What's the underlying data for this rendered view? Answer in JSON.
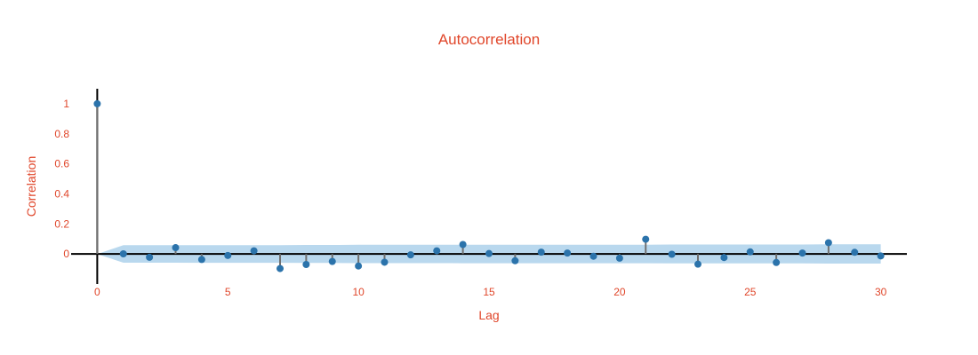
{
  "chart_data": {
    "type": "scatter",
    "title": "Autocorrelation",
    "xlabel": "Lag",
    "ylabel": "Correlation",
    "x": [
      0,
      1,
      2,
      3,
      4,
      5,
      6,
      7,
      8,
      9,
      10,
      11,
      12,
      13,
      14,
      15,
      16,
      17,
      18,
      19,
      20,
      21,
      22,
      23,
      24,
      25,
      26,
      27,
      28,
      29,
      30
    ],
    "values": [
      1.0,
      0.001,
      -0.022,
      0.042,
      -0.037,
      -0.01,
      0.021,
      -0.097,
      -0.07,
      -0.05,
      -0.08,
      -0.055,
      -0.006,
      0.021,
      0.063,
      0.003,
      -0.045,
      0.012,
      0.006,
      -0.015,
      -0.028,
      0.098,
      -0.002,
      -0.068,
      -0.024,
      0.014,
      -0.057,
      0.006,
      0.075,
      0.011,
      -0.013
    ],
    "conf_upper": [
      0.0,
      0.058,
      0.058,
      0.058,
      0.059,
      0.059,
      0.059,
      0.059,
      0.06,
      0.06,
      0.061,
      0.061,
      0.061,
      0.061,
      0.062,
      0.062,
      0.062,
      0.062,
      0.062,
      0.062,
      0.062,
      0.062,
      0.063,
      0.063,
      0.063,
      0.063,
      0.063,
      0.063,
      0.064,
      0.064,
      0.064
    ],
    "xlim": [
      -1,
      31
    ],
    "ylim": [
      -0.2,
      1.1
    ],
    "x_ticks": [
      0,
      5,
      10,
      15,
      20,
      25,
      30
    ],
    "y_ticks": [
      0,
      0.2,
      0.4,
      0.6,
      0.8,
      1
    ],
    "grid": false,
    "colors": {
      "marker": "#2b73ab",
      "stem": "#707070",
      "band": "#b9d8ee",
      "text": "#e0462a",
      "axis": "#000000"
    }
  }
}
